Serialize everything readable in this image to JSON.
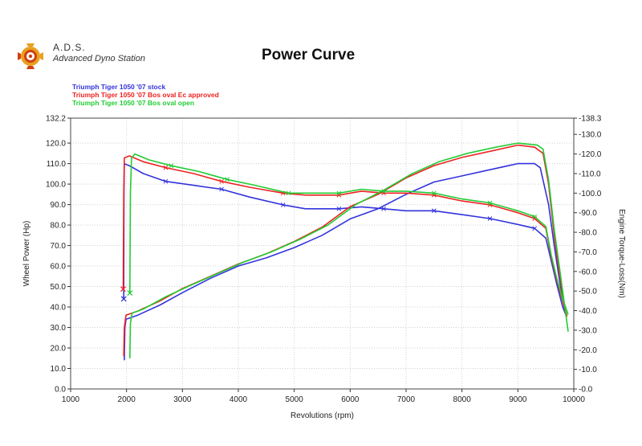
{
  "header": {
    "brand_short": "A.D.S.",
    "brand_full": "Advanced Dyno Station",
    "logo_icon": "gear-logo-icon"
  },
  "colors": {
    "stock": "#3333dd",
    "ec": "#ee2222",
    "open": "#22cc33",
    "grid": "#d0d0d0"
  },
  "chart_data": {
    "type": "line",
    "title": "Power Curve",
    "xlabel": "Revolutions (rpm)",
    "ylabel_left": "Wheel Power (Hp)",
    "ylabel_right": "Engine Torque-Loss(Nm)",
    "xlim": [
      1000,
      10000
    ],
    "ylim_left": [
      0,
      132.2
    ],
    "ylim_right": [
      0,
      138.3
    ],
    "x_ticks": [
      1000,
      2000,
      3000,
      4000,
      5000,
      6000,
      7000,
      8000,
      9000,
      10000
    ],
    "y_left_ticks": [
      "0.0",
      "10.0",
      "20.0",
      "30.0",
      "40.0",
      "50.0",
      "60.0",
      "70.0",
      "80.0",
      "90.0",
      "100.0",
      "110.0",
      "120.0",
      "132.2"
    ],
    "y_right_ticks": [
      "-0.0",
      "-10.0",
      "-20.0",
      "-30.0",
      "-40.0",
      "-50.0",
      "-60.0",
      "-70.0",
      "-80.0",
      "-90.0",
      "-100.0",
      "-110.0",
      "-120.0",
      "-130.0",
      "-138.3"
    ],
    "grid": true,
    "legend_position": "top-left",
    "series": [
      {
        "name": "Triumph Tiger 1050 '07 stock",
        "color_key": "stock",
        "power": [
          [
            1960,
            14
          ],
          [
            1970,
            30
          ],
          [
            1990,
            34
          ],
          [
            2200,
            36
          ],
          [
            2600,
            41
          ],
          [
            3000,
            47
          ],
          [
            3500,
            54
          ],
          [
            4000,
            60
          ],
          [
            4500,
            64
          ],
          [
            5000,
            69
          ],
          [
            5500,
            75
          ],
          [
            6000,
            83
          ],
          [
            6500,
            88
          ],
          [
            7000,
            95
          ],
          [
            7500,
            101
          ],
          [
            8000,
            104
          ],
          [
            8500,
            107
          ],
          [
            9000,
            110
          ],
          [
            9300,
            110
          ],
          [
            9400,
            108
          ],
          [
            9550,
            90
          ],
          [
            9650,
            70
          ],
          [
            9750,
            52
          ],
          [
            9850,
            37
          ]
        ],
        "torque": [
          [
            1950,
            46
          ],
          [
            1955,
            100
          ],
          [
            1960,
            115
          ],
          [
            2050,
            114
          ],
          [
            2300,
            110
          ],
          [
            2700,
            106
          ],
          [
            3200,
            104
          ],
          [
            3700,
            102
          ],
          [
            4200,
            98
          ],
          [
            4800,
            94
          ],
          [
            5200,
            92
          ],
          [
            5800,
            92
          ],
          [
            6200,
            93
          ],
          [
            6600,
            92
          ],
          [
            7000,
            91
          ],
          [
            7500,
            91
          ],
          [
            8000,
            89
          ],
          [
            8500,
            87
          ],
          [
            9000,
            84
          ],
          [
            9300,
            82
          ],
          [
            9500,
            77
          ],
          [
            9600,
            65
          ],
          [
            9700,
            53
          ],
          [
            9800,
            42
          ],
          [
            9870,
            37
          ]
        ]
      },
      {
        "name": "Triumph Tiger 1050 '07 Bos oval  Ec approved",
        "color_key": "ec",
        "power": [
          [
            1950,
            16
          ],
          [
            1960,
            30
          ],
          [
            1990,
            36
          ],
          [
            2200,
            38
          ],
          [
            2600,
            43
          ],
          [
            3000,
            49
          ],
          [
            3500,
            55
          ],
          [
            4000,
            61
          ],
          [
            4500,
            66
          ],
          [
            5000,
            72
          ],
          [
            5500,
            79
          ],
          [
            6000,
            89
          ],
          [
            6500,
            95
          ],
          [
            7000,
            103
          ],
          [
            7500,
            109
          ],
          [
            8000,
            113
          ],
          [
            8500,
            116
          ],
          [
            9000,
            119
          ],
          [
            9300,
            118
          ],
          [
            9450,
            115
          ],
          [
            9550,
            100
          ],
          [
            9650,
            75
          ],
          [
            9750,
            55
          ],
          [
            9850,
            37
          ]
        ],
        "torque": [
          [
            1940,
            51
          ],
          [
            1950,
            100
          ],
          [
            1960,
            118
          ],
          [
            2050,
            119
          ],
          [
            2300,
            116
          ],
          [
            2700,
            113
          ],
          [
            3200,
            110
          ],
          [
            3700,
            106
          ],
          [
            4200,
            103
          ],
          [
            4800,
            100
          ],
          [
            5200,
            99
          ],
          [
            5800,
            99
          ],
          [
            6200,
            101
          ],
          [
            6600,
            100
          ],
          [
            7000,
            100
          ],
          [
            7500,
            99
          ],
          [
            8000,
            96
          ],
          [
            8500,
            94
          ],
          [
            9000,
            90
          ],
          [
            9300,
            87
          ],
          [
            9500,
            82
          ],
          [
            9600,
            67
          ],
          [
            9700,
            55
          ],
          [
            9800,
            45
          ],
          [
            9880,
            37
          ]
        ]
      },
      {
        "name": "Triumph Tiger 1050 '07 Bos oval open",
        "color_key": "open",
        "power": [
          [
            2060,
            15
          ],
          [
            2070,
            32
          ],
          [
            2100,
            37
          ],
          [
            2300,
            39
          ],
          [
            2700,
            45
          ],
          [
            3100,
            50
          ],
          [
            3600,
            56
          ],
          [
            4100,
            62
          ],
          [
            4600,
            67
          ],
          [
            5100,
            73
          ],
          [
            5600,
            80
          ],
          [
            6100,
            90
          ],
          [
            6600,
            97
          ],
          [
            7100,
            105
          ],
          [
            7600,
            111
          ],
          [
            8100,
            115
          ],
          [
            8600,
            118
          ],
          [
            9000,
            120
          ],
          [
            9350,
            119
          ],
          [
            9450,
            117
          ],
          [
            9550,
            102
          ],
          [
            9650,
            78
          ],
          [
            9750,
            58
          ],
          [
            9900,
            28
          ]
        ],
        "torque": [
          [
            2060,
            49
          ],
          [
            2070,
            100
          ],
          [
            2090,
            118
          ],
          [
            2150,
            120
          ],
          [
            2400,
            117
          ],
          [
            2800,
            114
          ],
          [
            3300,
            111
          ],
          [
            3800,
            107
          ],
          [
            4300,
            104
          ],
          [
            4900,
            100
          ],
          [
            5300,
            100
          ],
          [
            5800,
            100
          ],
          [
            6200,
            102
          ],
          [
            6600,
            101
          ],
          [
            7000,
            101
          ],
          [
            7500,
            100
          ],
          [
            8000,
            97
          ],
          [
            8500,
            95
          ],
          [
            9000,
            91
          ],
          [
            9300,
            88
          ],
          [
            9500,
            83
          ],
          [
            9600,
            68
          ],
          [
            9700,
            56
          ],
          [
            9800,
            46
          ],
          [
            9900,
            38
          ]
        ]
      }
    ]
  }
}
